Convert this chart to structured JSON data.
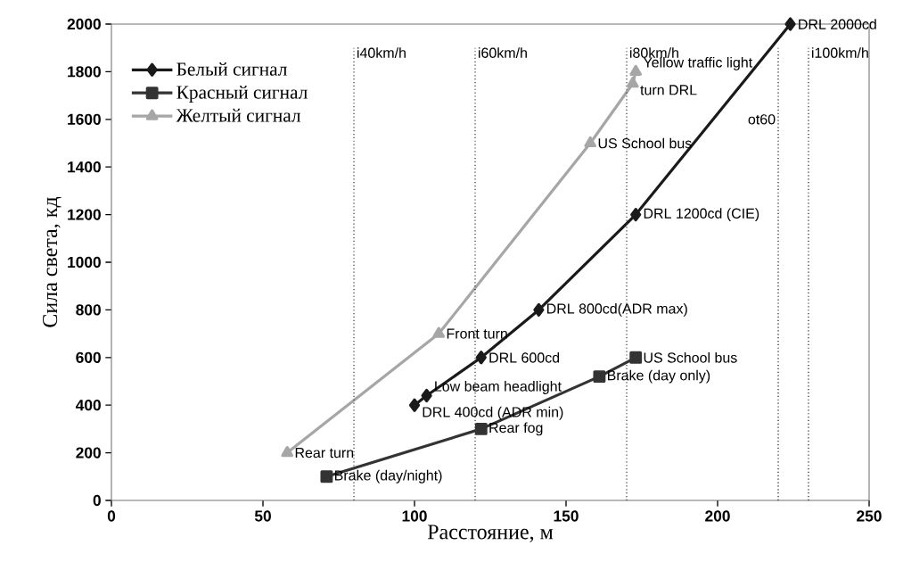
{
  "chart_data": {
    "type": "line",
    "xlabel": "Расстояние, м",
    "ylabel": "Сила света, кд",
    "xlim": [
      0,
      250
    ],
    "ylim": [
      0,
      2000
    ],
    "xticks": [
      0,
      50,
      100,
      150,
      200,
      250
    ],
    "yticks": [
      0,
      200,
      400,
      600,
      800,
      1000,
      1200,
      1400,
      1600,
      1800,
      2000
    ],
    "legend": "top left",
    "line_style": "solid",
    "series": [
      {
        "name": "Белый сигнал",
        "color": "#1a1a1a",
        "marker": "diamond",
        "x": [
          100,
          104,
          122,
          141,
          173,
          224
        ],
        "values": [
          400,
          440,
          600,
          800,
          1200,
          2000
        ]
      },
      {
        "name": "Красный сигнал",
        "color": "#333333",
        "marker": "square",
        "x": [
          71,
          122,
          161,
          173
        ],
        "values": [
          100,
          300,
          520,
          600
        ]
      },
      {
        "name": "Желтый сигнал",
        "color": "#a6a6a6",
        "marker": "triangle",
        "x": [
          58,
          108,
          158,
          172,
          173
        ],
        "values": [
          200,
          700,
          1500,
          1750,
          1800
        ]
      }
    ],
    "ref_lines": [
      {
        "axis": "x",
        "value": 80,
        "label": "i40km/h",
        "color": "#333333",
        "line_style": "dotted"
      },
      {
        "axis": "x",
        "value": 120,
        "label": "i60km/h",
        "color": "#333333",
        "line_style": "dotted"
      },
      {
        "axis": "x",
        "value": 170,
        "label": "i80km/h",
        "color": "#333333",
        "line_style": "dotted"
      },
      {
        "axis": "x",
        "value": 220,
        "label": "ot60",
        "color": "#1a1a1a",
        "line_style": "dotted"
      },
      {
        "axis": "x",
        "value": 230,
        "label": "i100km/h",
        "color": "#1a1a1a",
        "line_style": "dotted"
      }
    ],
    "annotations": [
      {
        "text": "DRL 400cd (ADR min)",
        "x": 100,
        "y": 400
      },
      {
        "text": "Low beam headlight",
        "x": 104,
        "y": 440
      },
      {
        "text": "DRL 600cd",
        "x": 122,
        "y": 600
      },
      {
        "text": "DRL 800cd(ADR max)",
        "x": 141,
        "y": 800
      },
      {
        "text": "DRL 1200cd (CIE)",
        "x": 173,
        "y": 1200
      },
      {
        "text": "DRL 2000cd",
        "x": 224,
        "y": 2000
      },
      {
        "text": "Brake (day/night)",
        "x": 71,
        "y": 100
      },
      {
        "text": "Rear fog",
        "x": 122,
        "y": 300
      },
      {
        "text": "Brake (day only)",
        "x": 161,
        "y": 520
      },
      {
        "text": "US School bus",
        "x": 173,
        "y": 600
      },
      {
        "text": "Rear turn",
        "x": 58,
        "y": 200
      },
      {
        "text": "Front turn",
        "x": 108,
        "y": 700
      },
      {
        "text": "US School bus",
        "x": 158,
        "y": 1500
      },
      {
        "text": "turn DRL",
        "x": 172,
        "y": 1750
      },
      {
        "text": "Yellow traffic light",
        "x": 173,
        "y": 1800
      }
    ]
  }
}
